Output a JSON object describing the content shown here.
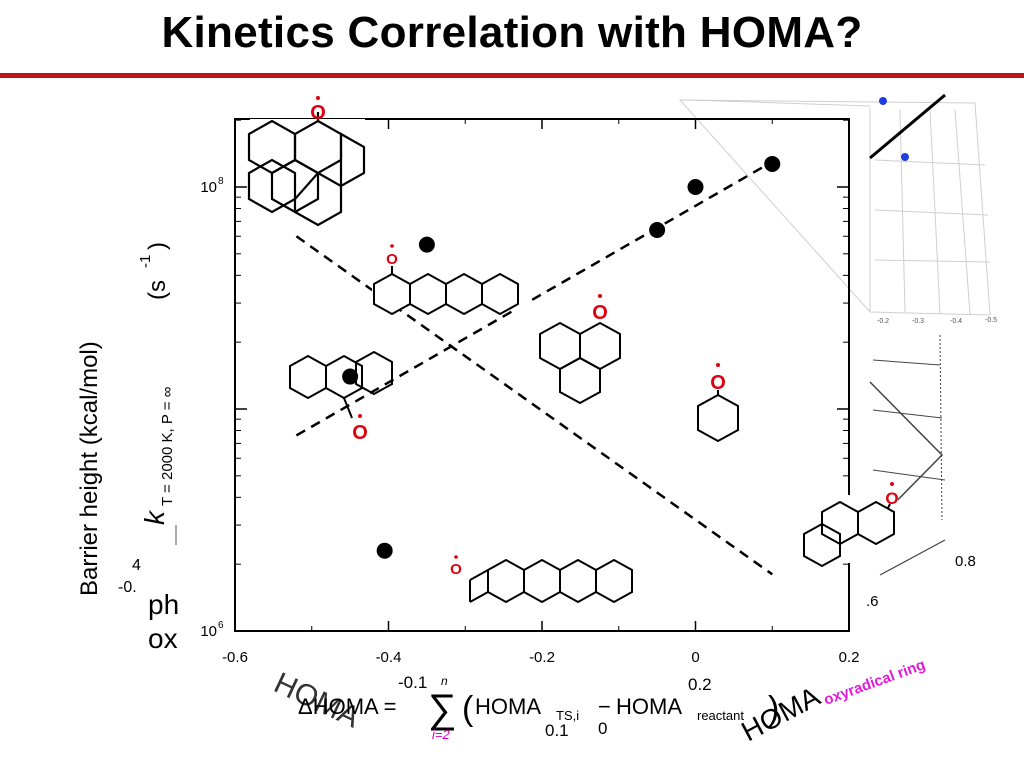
{
  "slide": {
    "title": "Kinetics Correlation with HOMA?",
    "accent_color": "#c0141b"
  },
  "overlay_text": {
    "barrier_label": "Barrier height (kcal/mol)",
    "phen_fragment": "ph",
    "ox_fragment": "ox",
    "frag_4": "4",
    "frag_neg": "-0.",
    "bg_axis_fragment_08": "0.8",
    "bg_axis_fragment_06": ".6",
    "bg_fragment_01": "0.1",
    "bg_fragment_0": "0",
    "bg_fragment_neg01": "-0.1",
    "bg_fragment_02": "0.2",
    "homa_big": "HOMA",
    "homa_small": "HOMA",
    "oxyradical_ring": "oxyradical ring",
    "bg_3d_ticks": [
      "-0.2",
      "-0.3",
      "-0.4",
      "-0.5"
    ]
  },
  "equation": {
    "lhs": "ΔHOMA =",
    "sum_lower": "i=2",
    "sum_upper": "n",
    "term1": "HOMA",
    "term1_sub": "TS,i",
    "minus": "−",
    "term2": "HOMA",
    "term2_sub": "reactant"
  },
  "structures": {
    "radical_label": "O"
  },
  "chart_data": {
    "type": "scatter",
    "title": "",
    "xlabel": "",
    "ylabel": "k T = 2000 K, P = ∞ (s-1)",
    "ylabel_parts": {
      "k": "k",
      "sub": "T = 2000 K, P = ∞",
      "unit": "(s",
      "unit_exp": "-1",
      "unit_close": ")"
    },
    "x_scale": "linear",
    "y_scale": "log",
    "xlim": [
      -0.6,
      0.2
    ],
    "ylim": [
      1000000,
      200000000
    ],
    "x_ticks": [
      -0.6,
      -0.4,
      -0.2,
      0,
      0.2
    ],
    "x_tick_labels": [
      "-0.6",
      "-0.4",
      "-0.2",
      "0",
      "0.2"
    ],
    "y_tick_labels": [
      {
        "value": 100000000,
        "base": "10",
        "exp": "8"
      },
      {
        "value": 1000000,
        "base": "10",
        "exp": "6"
      }
    ],
    "grid": false,
    "points": [
      {
        "x": -0.35,
        "y": 55000000
      },
      {
        "x": -0.45,
        "y": 14000000
      },
      {
        "x": -0.405,
        "y": 2300000
      },
      {
        "x": -0.05,
        "y": 64000000
      },
      {
        "x": 0.0,
        "y": 100000000
      },
      {
        "x": 0.1,
        "y": 127000000
      }
    ],
    "fit_lines": [
      {
        "x": [
          -0.52,
          0.1
        ],
        "y": [
          60000000,
          1800000
        ]
      },
      {
        "x": [
          -0.52,
          0.1
        ],
        "y": [
          7600000,
          130000000
        ]
      }
    ],
    "point_color": "#000000",
    "line_color": "#000000"
  }
}
